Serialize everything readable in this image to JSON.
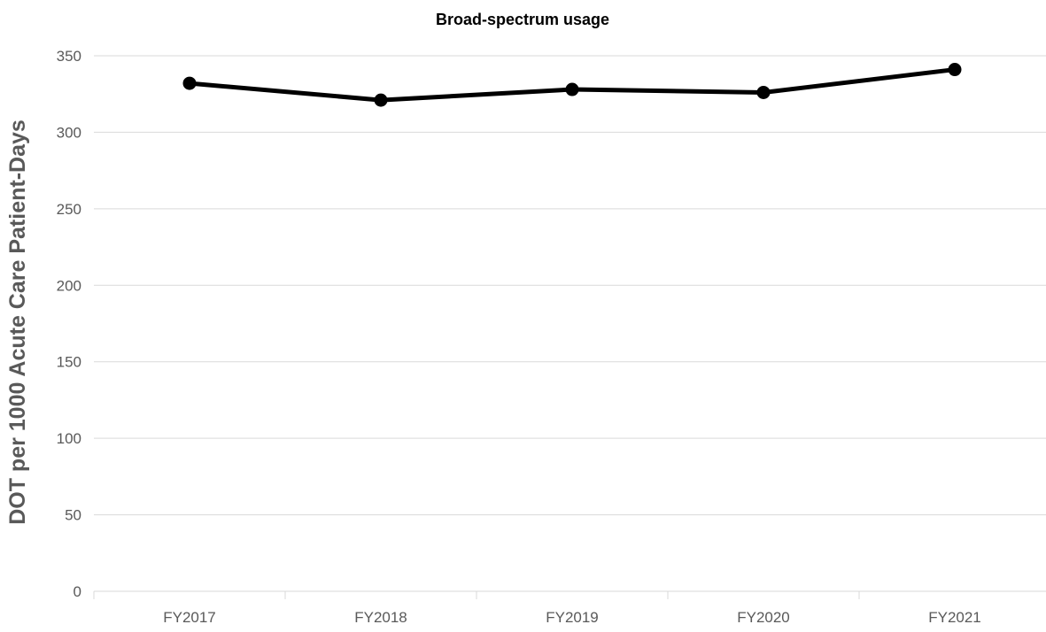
{
  "chart_data": {
    "type": "line",
    "title": "Broad-spectrum usage",
    "xlabel": "",
    "ylabel": "DOT per 1000 Acute Care Patient-Days",
    "categories": [
      "FY2017",
      "FY2018",
      "FY2019",
      "FY2020",
      "FY2021"
    ],
    "series": [
      {
        "values": [
          332,
          321,
          328,
          326,
          341
        ],
        "color": "#000000"
      }
    ],
    "ylim": [
      0,
      350
    ],
    "yticks": [
      0,
      50,
      100,
      150,
      200,
      250,
      300,
      350
    ],
    "grid": true,
    "legend": "none"
  }
}
